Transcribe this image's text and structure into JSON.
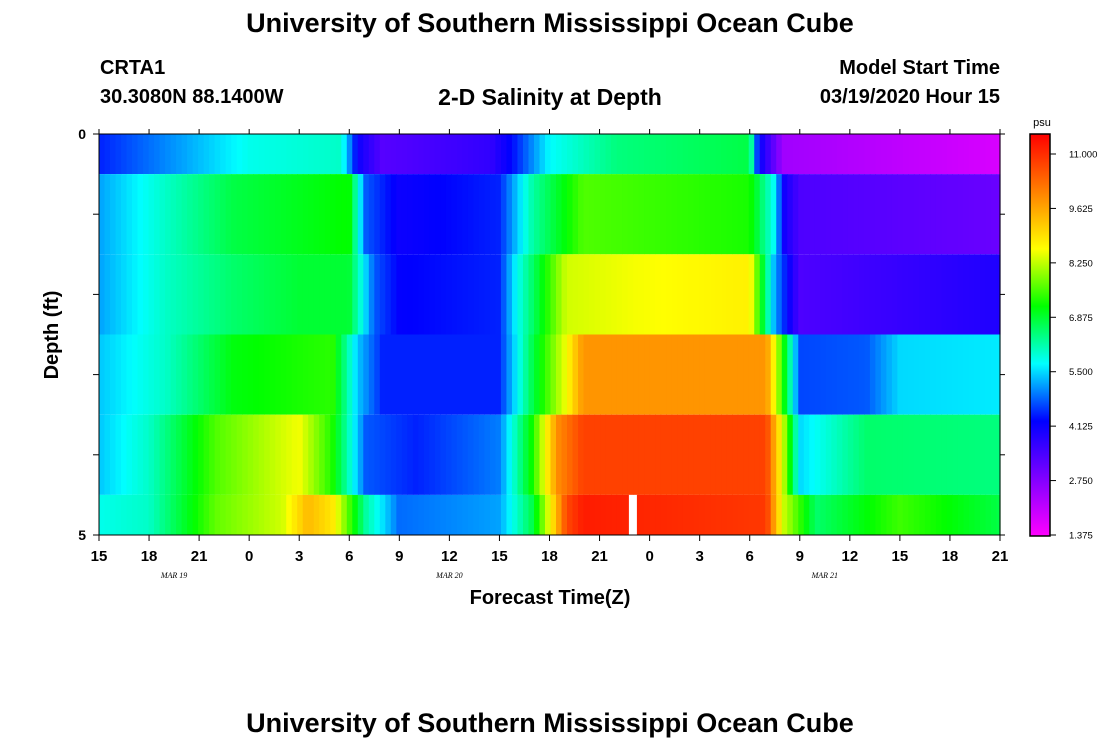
{
  "header": {
    "title": "University of Southern Mississippi Ocean Cube",
    "station_id": "CRTA1",
    "station_coords": "30.3080N 88.1400W",
    "plot_title": "2-D Salinity at Depth",
    "model_start_label": "Model Start Time",
    "model_start_value": "03/19/2020 Hour 15"
  },
  "footer": {
    "title": "University of Southern Mississippi Ocean Cube"
  },
  "chart_data": {
    "type": "heatmap",
    "title": "2-D Salinity at Depth",
    "xlabel": "Forecast Time(Z)",
    "ylabel": "Depth (ft)",
    "x_range_hours": [
      0,
      54
    ],
    "x_tick_labels": [
      "15",
      "18",
      "21",
      "0",
      "3",
      "6",
      "9",
      "12",
      "15",
      "18",
      "21",
      "0",
      "3",
      "6",
      "9",
      "12",
      "15",
      "18",
      "21"
    ],
    "date_labels": [
      {
        "label": "MAR 19",
        "hour": 4.5
      },
      {
        "label": "MAR 20",
        "hour": 21
      },
      {
        "label": "MAR 21",
        "hour": 43.5
      }
    ],
    "y_range": [
      0,
      5
    ],
    "y_tick_labels": [
      "0",
      "5"
    ],
    "depth_bands": [
      0,
      0.5,
      1.5,
      2.5,
      3.5,
      4.5,
      5
    ],
    "colorbar": {
      "unit": "psu",
      "min": 1.375,
      "max": 11.0,
      "tick_labels": [
        "11.000",
        "9.625",
        "8.250",
        "6.875",
        "5.500",
        "4.125",
        "2.750",
        "1.375"
      ],
      "stops": [
        {
          "v": 1.375,
          "c": "#ff00ff"
        },
        {
          "v": 2.75,
          "c": "#8000ff"
        },
        {
          "v": 4.125,
          "c": "#0000ff"
        },
        {
          "v": 5.5,
          "c": "#00ffff"
        },
        {
          "v": 6.875,
          "c": "#00ff00"
        },
        {
          "v": 8.25,
          "c": "#ffff00"
        },
        {
          "v": 9.625,
          "c": "#ff8000"
        },
        {
          "v": 11.0,
          "c": "#ff0000"
        }
      ]
    },
    "series": [
      {
        "name": "0 ft",
        "keys": [
          [
            0,
            4.3
          ],
          [
            5,
            5.0
          ],
          [
            9,
            5.6
          ],
          [
            14.5,
            5.8
          ],
          [
            15.5,
            4.0
          ],
          [
            17,
            3.2
          ],
          [
            23.5,
            3.6
          ],
          [
            25,
            4.3
          ],
          [
            27,
            5.5
          ],
          [
            31,
            6.2
          ],
          [
            39,
            6.5
          ],
          [
            39.5,
            4.2
          ],
          [
            41,
            2.4
          ],
          [
            54,
            1.8
          ]
        ]
      },
      {
        "name": "1 ft",
        "keys": [
          [
            0,
            5.0
          ],
          [
            4,
            5.8
          ],
          [
            8,
            6.5
          ],
          [
            15,
            6.9
          ],
          [
            16,
            4.6
          ],
          [
            18,
            4.0
          ],
          [
            24,
            4.3
          ],
          [
            26,
            6.0
          ],
          [
            29,
            7.3
          ],
          [
            39,
            7.0
          ],
          [
            40.5,
            5.5
          ],
          [
            41,
            4.0
          ],
          [
            42,
            3.3
          ],
          [
            54,
            3.0
          ]
        ]
      },
      {
        "name": "2 ft",
        "keys": [
          [
            0,
            5.0
          ],
          [
            4,
            5.8
          ],
          [
            8,
            6.3
          ],
          [
            12,
            6.6
          ],
          [
            15,
            6.6
          ],
          [
            16.5,
            4.6
          ],
          [
            18,
            4.1
          ],
          [
            24,
            4.3
          ],
          [
            25,
            5.5
          ],
          [
            28,
            8.0
          ],
          [
            32,
            8.2
          ],
          [
            39,
            8.4
          ],
          [
            40.5,
            5.0
          ],
          [
            42,
            3.3
          ],
          [
            54,
            3.8
          ]
        ]
      },
      {
        "name": "3 ft",
        "keys": [
          [
            0,
            5.2
          ],
          [
            4,
            5.8
          ],
          [
            8,
            6.8
          ],
          [
            14,
            7.1
          ],
          [
            15.5,
            5.2
          ],
          [
            17,
            4.3
          ],
          [
            24,
            4.3
          ],
          [
            26,
            6.5
          ],
          [
            28,
            8.2
          ],
          [
            29,
            9.4
          ],
          [
            40,
            9.4
          ],
          [
            41,
            7.0
          ],
          [
            42,
            4.5
          ],
          [
            46,
            4.6
          ],
          [
            48,
            5.3
          ],
          [
            54,
            5.4
          ]
        ]
      },
      {
        "name": "4 ft",
        "keys": [
          [
            0,
            5.2
          ],
          [
            3,
            5.8
          ],
          [
            7,
            7.3
          ],
          [
            12,
            8.2
          ],
          [
            14,
            7.0
          ],
          [
            16,
            4.6
          ],
          [
            19,
            4.3
          ],
          [
            24,
            4.8
          ],
          [
            26,
            7.0
          ],
          [
            27.5,
            9.5
          ],
          [
            29,
            10.3
          ],
          [
            40,
            10.3
          ],
          [
            41,
            8.0
          ],
          [
            42,
            5.3
          ],
          [
            46,
            6.3
          ],
          [
            54,
            6.2
          ]
        ]
      },
      {
        "name": "5 ft",
        "keys": [
          [
            0,
            5.6
          ],
          [
            3,
            5.8
          ],
          [
            7,
            7.4
          ],
          [
            11,
            8.0
          ],
          [
            12.5,
            9.0
          ],
          [
            14,
            8.5
          ],
          [
            16,
            6.0
          ],
          [
            18,
            4.7
          ],
          [
            24,
            5.0
          ],
          [
            26,
            6.5
          ],
          [
            27,
            8.2
          ],
          [
            28,
            10.2
          ],
          [
            29,
            10.7
          ],
          [
            40,
            10.4
          ],
          [
            41,
            8.0
          ],
          [
            43,
            6.3
          ],
          [
            48,
            7.2
          ],
          [
            54,
            6.5
          ]
        ]
      }
    ],
    "gap_marker_hour": 32
  }
}
